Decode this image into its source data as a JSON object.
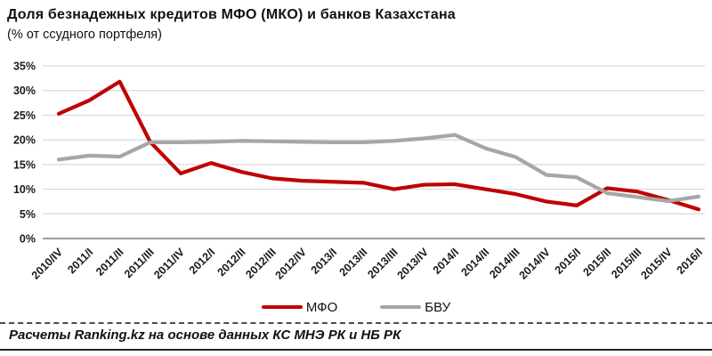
{
  "header": {
    "title": "Доля безнадежных кредитов МФО (МКО) и банков  Казахстана",
    "subtitle": "(% от ссудного портфеля)"
  },
  "chart_data": {
    "type": "line",
    "title": "Доля безнадежных кредитов МФО (МКО) и банков Казахстана",
    "subtitle": "(% от ссудного портфеля)",
    "categories": [
      "2010/IV",
      "2011/I",
      "2011/II",
      "2011/III",
      "2011/IV",
      "2012/I",
      "2012/II",
      "2012/III",
      "2012/IV",
      "2013/I",
      "2013/II",
      "2013/III",
      "2013/IV",
      "2014/I",
      "2014/II",
      "2014/III",
      "2014/IV",
      "2015/I",
      "2015/II",
      "2015/III",
      "2015/IV",
      "2016/I"
    ],
    "series": [
      {
        "name": "МФО",
        "color": "#c00000",
        "values": [
          25.3,
          28.0,
          31.8,
          19.6,
          13.2,
          15.3,
          13.5,
          12.2,
          11.7,
          11.5,
          11.3,
          10.0,
          10.9,
          11.0,
          10.0,
          9.0,
          7.5,
          6.7,
          10.2,
          9.5,
          7.8,
          5.9
        ]
      },
      {
        "name": "БВУ",
        "color": "#a6a6a6",
        "values": [
          16.0,
          16.8,
          16.6,
          19.5,
          19.5,
          19.6,
          19.8,
          19.7,
          19.6,
          19.5,
          19.5,
          19.8,
          20.3,
          21.0,
          18.3,
          16.5,
          12.9,
          12.4,
          9.2,
          8.4,
          7.6,
          8.5
        ]
      }
    ],
    "xlabel": "",
    "ylabel": "",
    "ylim": [
      0,
      35
    ],
    "ytick_step": 5,
    "ytick_suffix": "%",
    "grid": true,
    "legend_position": "bottom"
  },
  "footer": {
    "source": "Расчеты Ranking.kz на основе данных КС МНЭ РК и НБ РК"
  },
  "colors": {
    "mfo_line": "#c00000",
    "bvu_line": "#a6a6a6",
    "gridline": "#d9d9d9",
    "axis_line": "#7f7f7f",
    "text": "#111111"
  }
}
